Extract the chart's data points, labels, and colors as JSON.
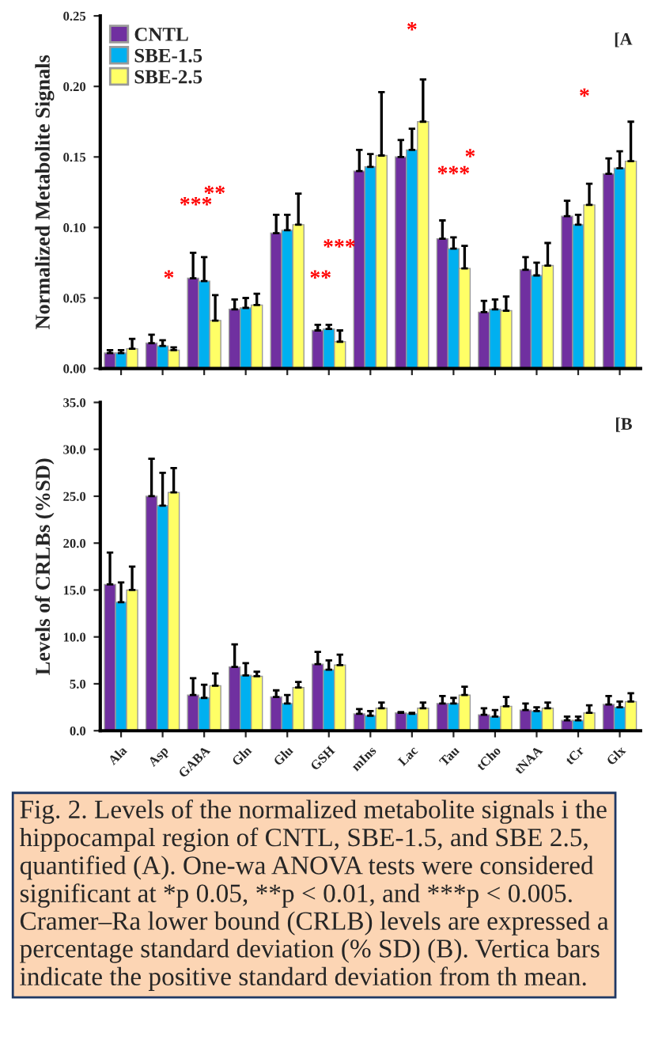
{
  "chart_data": [
    {
      "type": "bar",
      "ylabel": "Normalized Metabolite Signals",
      "categories": [
        null,
        null,
        null,
        null,
        null,
        null,
        null,
        null,
        null,
        null,
        null,
        null,
        null
      ],
      "tick_labels": "y",
      "legend": "top left",
      "ylim": [
        0,
        0.25
      ],
      "yticks": [
        {
          "value": 0,
          "label": "0.00"
        },
        {
          "value": 0.05,
          "label": "0.05"
        },
        {
          "value": 0.1,
          "label": "0.10"
        },
        {
          "value": 0.15,
          "label": "0.15"
        },
        {
          "value": 0.2,
          "label": "0.20"
        },
        {
          "value": 0.25,
          "label": "0.25"
        }
      ],
      "series": [
        {
          "name": "CNTL",
          "color": "#7030a0",
          "values": [
            0.011,
            0.018,
            0.064,
            0.042,
            0.096,
            0.027,
            0.14,
            0.15,
            0.092,
            0.04,
            0.07,
            0.108,
            0.138
          ],
          "errors": [
            [
              0.011,
              0.013
            ],
            [
              0.018,
              0.024
            ],
            [
              0.064,
              0.082
            ],
            [
              0.042,
              0.049
            ],
            [
              0.096,
              0.109
            ],
            [
              0.027,
              0.031
            ],
            [
              0.14,
              0.155
            ],
            [
              0.15,
              0.162
            ],
            [
              0.092,
              0.105
            ],
            [
              0.04,
              0.048
            ],
            [
              0.07,
              0.079
            ],
            [
              0.108,
              0.119
            ],
            [
              0.138,
              0.149
            ]
          ]
        },
        {
          "name": "SBE-1.5",
          "color": "#00b0f0",
          "values": [
            0.011,
            0.016,
            0.062,
            0.043,
            0.098,
            0.028,
            0.143,
            0.155,
            0.085,
            0.042,
            0.066,
            0.102,
            0.142
          ],
          "errors": [
            [
              0.011,
              0.013
            ],
            [
              0.016,
              0.02
            ],
            [
              0.062,
              0.079
            ],
            [
              0.043,
              0.05
            ],
            [
              0.098,
              0.109
            ],
            [
              0.028,
              0.031
            ],
            [
              0.143,
              0.152
            ],
            [
              0.155,
              0.17
            ],
            [
              0.085,
              0.093
            ],
            [
              0.042,
              0.049
            ],
            [
              0.066,
              0.075
            ],
            [
              0.102,
              0.109
            ],
            [
              0.142,
              0.154
            ]
          ]
        },
        {
          "name": "SBE-2.5",
          "color": "#ffff66",
          "values": [
            0.014,
            0.013,
            0.034,
            0.045,
            0.102,
            0.019,
            0.151,
            0.175,
            0.071,
            0.041,
            0.073,
            0.116,
            0.147
          ],
          "errors": [
            [
              0.014,
              0.021
            ],
            [
              0.013,
              0.015
            ],
            [
              0.034,
              0.052
            ],
            [
              0.045,
              0.053
            ],
            [
              0.102,
              0.124
            ],
            [
              0.019,
              0.027
            ],
            [
              0.151,
              0.196
            ],
            [
              0.175,
              0.205
            ],
            [
              0.071,
              0.087
            ],
            [
              0.041,
              0.051
            ],
            [
              0.073,
              0.089
            ],
            [
              0.116,
              0.131
            ],
            [
              0.147,
              0.175
            ]
          ]
        }
      ],
      "annotations": [
        "[A",
        "*",
        "***",
        "**",
        "**",
        "***",
        "*",
        "***",
        "*",
        "*"
      ]
    },
    {
      "type": "bar",
      "ylabel": "Levels of CRLBs (%SD)",
      "categories": [
        "Ala",
        "Asp",
        "GABA",
        "Gln",
        "Glu",
        "GSH",
        "mIns",
        "Lac",
        "Tau",
        "tCho",
        "tNAA",
        "tCr",
        "Glx"
      ],
      "ylim": [
        0,
        35
      ],
      "yticks": [
        {
          "value": 0,
          "label": "0.0"
        },
        {
          "value": 5,
          "label": "5.0"
        },
        {
          "value": 10,
          "label": "10.0"
        },
        {
          "value": 15,
          "label": "15.0"
        },
        {
          "value": 20,
          "label": "20.0"
        },
        {
          "value": 25,
          "label": "25.0"
        },
        {
          "value": 30,
          "label": "30.0"
        },
        {
          "value": 35,
          "label": "35.0"
        }
      ],
      "series": [
        {
          "color": "#7030a0",
          "values": [
            15.6,
            25.0,
            3.8,
            6.8,
            3.6,
            7.1,
            1.8,
            1.9,
            2.9,
            1.7,
            2.2,
            1.1,
            2.8
          ],
          "errors": [
            [
              15.6,
              19.0
            ],
            [
              25.0,
              29.0
            ],
            [
              3.8,
              5.6
            ],
            [
              6.8,
              9.2
            ],
            [
              3.6,
              4.3
            ],
            [
              7.1,
              8.4
            ],
            [
              1.8,
              2.3
            ],
            [
              1.9,
              2.0
            ],
            [
              2.9,
              3.7
            ],
            [
              1.7,
              2.4
            ],
            [
              2.2,
              2.9
            ],
            [
              1.1,
              1.5
            ],
            [
              2.8,
              3.7
            ]
          ]
        },
        {
          "color": "#00b0f0",
          "values": [
            13.7,
            24.0,
            3.5,
            5.9,
            2.9,
            6.5,
            1.6,
            1.8,
            2.9,
            1.5,
            2.1,
            1.1,
            2.5
          ],
          "errors": [
            [
              13.7,
              15.8
            ],
            [
              24.0,
              27.5
            ],
            [
              3.5,
              4.9
            ],
            [
              5.9,
              7.2
            ],
            [
              2.9,
              3.8
            ],
            [
              6.5,
              7.5
            ],
            [
              1.6,
              2.1
            ],
            [
              1.8,
              1.9
            ],
            [
              2.9,
              3.5
            ],
            [
              1.5,
              2.2
            ],
            [
              2.1,
              2.5
            ],
            [
              1.1,
              1.5
            ],
            [
              2.5,
              3.1
            ]
          ]
        },
        {
          "color": "#ffff66",
          "values": [
            15.0,
            25.4,
            4.8,
            5.8,
            4.6,
            7.0,
            2.4,
            2.4,
            3.8,
            2.6,
            2.4,
            1.9,
            3.1
          ],
          "errors": [
            [
              15.0,
              17.5
            ],
            [
              25.4,
              28.0
            ],
            [
              4.8,
              6.1
            ],
            [
              5.8,
              6.3
            ],
            [
              4.6,
              5.2
            ],
            [
              7.0,
              8.1
            ],
            [
              2.4,
              3.0
            ],
            [
              2.4,
              3.0
            ],
            [
              3.8,
              4.7
            ],
            [
              2.6,
              3.6
            ],
            [
              2.4,
              3.0
            ],
            [
              1.9,
              2.7
            ],
            [
              3.1,
              4.0
            ]
          ]
        }
      ],
      "annotations": [
        "[B",
        "Fig. 2. Levels of the normalized metabolite signals i the hippocampal region of CNTL, SBE-1.5, and SBE 2.5, quantified (A). One-wa ANOVA tests were considered significant at *p 0.05, **p < 0.01, and ***p < 0.005. Cramer–Ra lower bound (CRLB) levels are expressed a percentage standard deviation (% SD) (B). Vertica bars indicate the positive standard deviation from th mean."
      ]
    }
  ]
}
